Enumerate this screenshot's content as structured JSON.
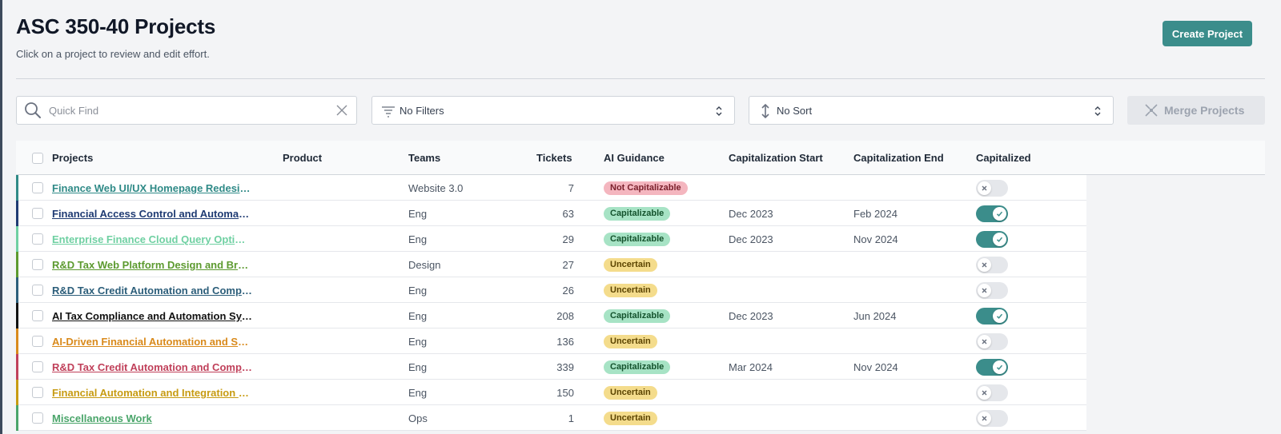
{
  "header": {
    "title": "ASC 350-40 Projects",
    "subtitle": "Click on a project to review and edit effort.",
    "create_button": "Create Project"
  },
  "toolbar": {
    "search_placeholder": "Quick Find",
    "search_value": "",
    "filter_label": "No Filters",
    "sort_label": "No Sort",
    "merge_button": "Merge Projects"
  },
  "colors": {
    "accent": "#3b8d8b",
    "badge_not_cap_bg": "#f4b6bf",
    "badge_cap_bg": "#a7e3c5",
    "badge_uncertain_bg": "#f4dc8c",
    "toggle_on": "#3b8d8b",
    "toggle_off": "#e5e7eb"
  },
  "table": {
    "headers": {
      "projects": "Projects",
      "product": "Product",
      "teams": "Teams",
      "tickets": "Tickets",
      "ai_guidance": "AI Guidance",
      "cap_start": "Capitalization Start",
      "cap_end": "Capitalization End",
      "capitalized": "Capitalized"
    },
    "rows": [
      {
        "name": "Finance Web UI/UX Homepage Redesign",
        "product": "",
        "team": "Website 3.0",
        "tickets": "7",
        "guidance": "Not Capitalizable",
        "start": "",
        "end": "",
        "capitalized": false,
        "color": "#2f8a87"
      },
      {
        "name": "Financial Access Control and Automation…",
        "product": "",
        "team": "Eng",
        "tickets": "63",
        "guidance": "Capitalizable",
        "start": "Dec 2023",
        "end": "Feb 2024",
        "capitalized": true,
        "color": "#1f3b73"
      },
      {
        "name": "Enterprise Finance Cloud Query Optimiz…",
        "product": "",
        "team": "Eng",
        "tickets": "29",
        "guidance": "Capitalizable",
        "start": "Dec 2023",
        "end": "Nov 2024",
        "capitalized": true,
        "color": "#6fd0a2"
      },
      {
        "name": "R&D Tax Web Platform Design and Brandi…",
        "product": "",
        "team": "Design",
        "tickets": "27",
        "guidance": "Uncertain",
        "start": "",
        "end": "",
        "capitalized": false,
        "color": "#5c9a2f"
      },
      {
        "name": "R&D Tax Credit Automation and Complia…",
        "product": "",
        "team": "Eng",
        "tickets": "26",
        "guidance": "Uncertain",
        "start": "",
        "end": "",
        "capitalized": false,
        "color": "#2c5e7a"
      },
      {
        "name": "AI Tax Compliance and Automation Syste…",
        "product": "",
        "team": "Eng",
        "tickets": "208",
        "guidance": "Capitalizable",
        "start": "Dec 2023",
        "end": "Jun 2024",
        "capitalized": true,
        "color": "#111111"
      },
      {
        "name": "AI-Driven Financial Automation and Secu…",
        "product": "",
        "team": "Eng",
        "tickets": "136",
        "guidance": "Uncertain",
        "start": "",
        "end": "",
        "capitalized": false,
        "color": "#d98a1c"
      },
      {
        "name": "R&D Tax Credit Automation and Complia…",
        "product": "",
        "team": "Eng",
        "tickets": "339",
        "guidance": "Capitalizable",
        "start": "Mar 2024",
        "end": "Nov 2024",
        "capitalized": true,
        "color": "#c0405a"
      },
      {
        "name": "Financial Automation and Integration Plat…",
        "product": "",
        "team": "Eng",
        "tickets": "150",
        "guidance": "Uncertain",
        "start": "",
        "end": "",
        "capitalized": false,
        "color": "#c79b12"
      },
      {
        "name": "Miscellaneous Work",
        "product": "",
        "team": "Ops",
        "tickets": "1",
        "guidance": "Uncertain",
        "start": "",
        "end": "",
        "capitalized": false,
        "color": "#4aa56a"
      }
    ]
  }
}
